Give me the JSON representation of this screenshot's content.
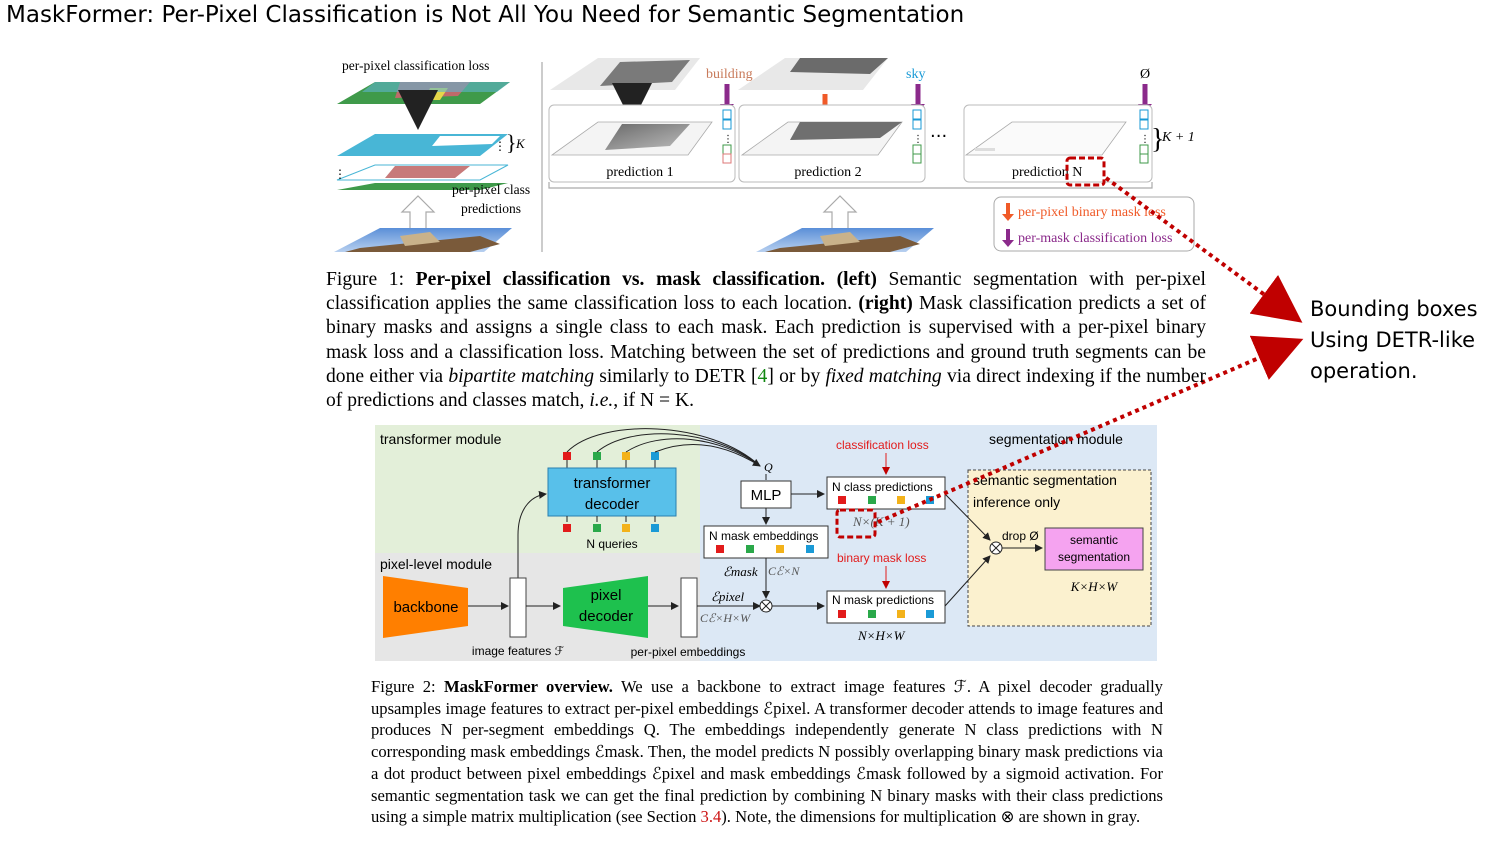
{
  "title": "MaskFormer: Per-Pixel Classification is Not All You Need for Semantic Segmentation",
  "figure1": {
    "left": {
      "loss_label": "per-pixel classification loss",
      "k_label": "K",
      "predictions_label_1": "per-pixel class",
      "predictions_label_2": "predictions"
    },
    "right": {
      "class_building": "building",
      "class_sky": "sky",
      "class_null": "Ø",
      "pred1": "prediction 1",
      "pred2": "prediction 2",
      "predN": "prediction N",
      "dots": "···",
      "k_plus_1": "K + 1",
      "legend_binary": "per-pixel binary mask loss",
      "legend_class": "per-mask classification loss"
    },
    "caption": {
      "label": "Figure 1:",
      "bold_title": "Per-pixel classification vs. mask classification.",
      "left_tag": "(left)",
      "text1": "Semantic segmentation with per-pixel classification applies the same classification loss to each location.",
      "right_tag": "(right)",
      "text2": "Mask classification predicts a set of binary masks and assigns a single class to each mask. Each prediction is supervised with a per-pixel binary mask loss and a classification loss. Matching between the set of predictions and ground truth segments can be done either via",
      "italic1": "bipartite matching",
      "text3": "similarly to DETR [",
      "ref": "4",
      "text4": "] or by",
      "italic2": "fixed matching",
      "text5": "via direct indexing if the number of predictions and classes match,",
      "italic3": "i.e.",
      "text6": ", if N = K."
    }
  },
  "figure2": {
    "transformer_module": "transformer module",
    "segmentation_module": "segmentation module",
    "pixel_module": "pixel-level module",
    "transformer_decoder_1": "transformer",
    "transformer_decoder_2": "decoder",
    "n_queries": "N queries",
    "q_label": "Q",
    "mlp": "MLP",
    "classification_loss": "classification loss",
    "class_predictions": "N class predictions",
    "nk1": "N×(K + 1)",
    "mask_embeddings": "N mask embeddings",
    "e_mask": "ℰmask",
    "ce_n": "Cℰ×N",
    "binary_mask_loss": "binary mask loss",
    "mask_predictions": "N mask predictions",
    "nhw": "N×H×W",
    "backbone": "backbone",
    "pixel_decoder_1": "pixel",
    "pixel_decoder_2": "decoder",
    "image_features": "image features ℱ",
    "per_pixel_embeddings": "per-pixel embeddings",
    "e_pixel": "ℰpixel",
    "ce_hw": "Cℰ×H×W",
    "inference_1": "semantic segmentation",
    "inference_2": "inference only",
    "drop": "drop Ø",
    "semseg_1": "semantic",
    "semseg_2": "segmentation",
    "khw": "K×H×W",
    "caption": {
      "label": "Figure 2:",
      "bold_title": "MaskFormer overview.",
      "text": "We use a backbone to extract image features ℱ. A pixel decoder gradually upsamples image features to extract per-pixel embeddings ℰpixel. A transformer decoder attends to image features and produces N per-segment embeddings Q. The embeddings independently generate N class predictions with N corresponding mask embeddings ℰmask. Then, the model predicts N possibly overlapping binary mask predictions via a dot product between pixel embeddings ℰpixel and mask embeddings ℰmask followed by a sigmoid activation. For semantic segmentation task we can get the final prediction by combining N binary masks with their class predictions using a simple matrix multiplication (see Section",
      "ref": "3.4",
      "text_end": "). Note, the dimensions for multiplication ⊗ are shown in gray."
    }
  },
  "annotation": {
    "line1": "Bounding boxes",
    "line2": "Using DETR-like",
    "line3": "operation."
  },
  "colors": {
    "orange": "#f05a28",
    "purple": "#8b2a8b",
    "dashed_red": "#c00000",
    "transformer_bg": "#e3efd9",
    "segmentation_bg": "#dce8f5",
    "pixel_bg": "#e6e6e6",
    "inference_bg": "#fbf1cf"
  }
}
